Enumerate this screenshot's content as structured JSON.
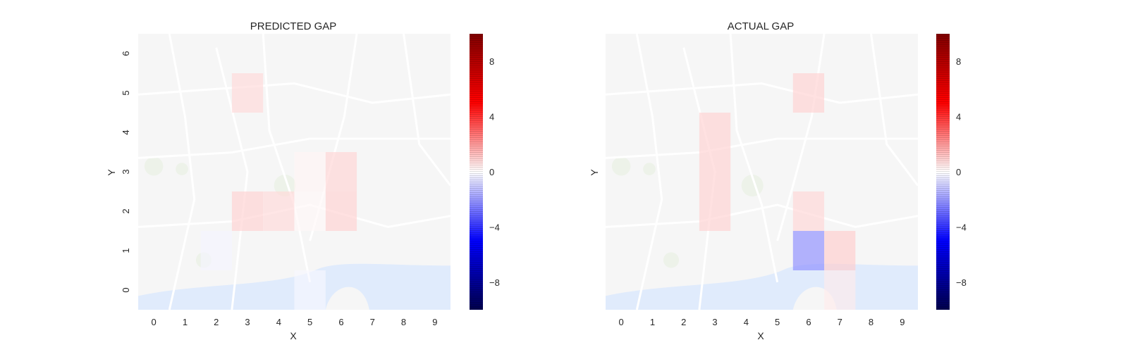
{
  "colors": {
    "positive": "#ff0000",
    "negative": "#0000ff",
    "map_land": "#f2f2f2",
    "map_water": "#cfe0fb",
    "map_road": "#ffffff"
  },
  "chart_data": [
    {
      "type": "heatmap",
      "title": "PREDICTED GAP",
      "xlabel": "X",
      "ylabel": "Y",
      "x_ticks": [
        0,
        1,
        2,
        3,
        4,
        5,
        6,
        7,
        8,
        9
      ],
      "y_ticks": [
        0,
        1,
        2,
        3,
        4,
        5,
        6
      ],
      "xlim": [
        -0.5,
        9.5
      ],
      "ylim": [
        -0.5,
        6.5
      ],
      "grid": false,
      "background": "street map",
      "colorbar": {
        "ticks": [
          "8",
          "4",
          "0",
          "−4",
          "−8"
        ],
        "tick_values": [
          8,
          4,
          0,
          -4,
          -8
        ],
        "range": [
          -10,
          10
        ]
      },
      "cells": [
        {
          "x": 3,
          "y": 5,
          "value": 1.5
        },
        {
          "x": 3,
          "y": 2,
          "value": 1.8
        },
        {
          "x": 4,
          "y": 2,
          "value": 1.5
        },
        {
          "x": 6,
          "y": 2,
          "value": 1.8
        },
        {
          "x": 6,
          "y": 3,
          "value": 1.7
        },
        {
          "x": 5,
          "y": 3,
          "value": 0.4
        },
        {
          "x": 5,
          "y": 2,
          "value": 0.3
        },
        {
          "x": 2,
          "y": 1,
          "value": -0.4
        },
        {
          "x": 5,
          "y": 0,
          "value": -0.3
        }
      ]
    },
    {
      "type": "heatmap",
      "title": "ACTUAL GAP",
      "xlabel": "X",
      "ylabel": "Y",
      "x_ticks": [
        0,
        1,
        2,
        3,
        4,
        5,
        6,
        7,
        8,
        9
      ],
      "y_ticks": [],
      "xlim": [
        -0.5,
        9.5
      ],
      "ylim": [
        -0.5,
        6.5
      ],
      "grid": false,
      "background": "street map",
      "colorbar": {
        "ticks": [
          "8",
          "4",
          "0",
          "−4",
          "−8"
        ],
        "tick_values": [
          8,
          4,
          0,
          -4,
          -8
        ],
        "range": [
          -10,
          10
        ]
      },
      "cells": [
        {
          "x": 6,
          "y": 5,
          "value": 1.8
        },
        {
          "x": 3,
          "y": 4,
          "value": 1.8
        },
        {
          "x": 3,
          "y": 3,
          "value": 1.8
        },
        {
          "x": 3,
          "y": 2,
          "value": 1.8
        },
        {
          "x": 6,
          "y": 2,
          "value": 1.6
        },
        {
          "x": 6,
          "y": 1,
          "value": -4.5
        },
        {
          "x": 7,
          "y": 1,
          "value": 2.0
        },
        {
          "x": 7,
          "y": 0,
          "value": 0.8
        }
      ]
    }
  ]
}
